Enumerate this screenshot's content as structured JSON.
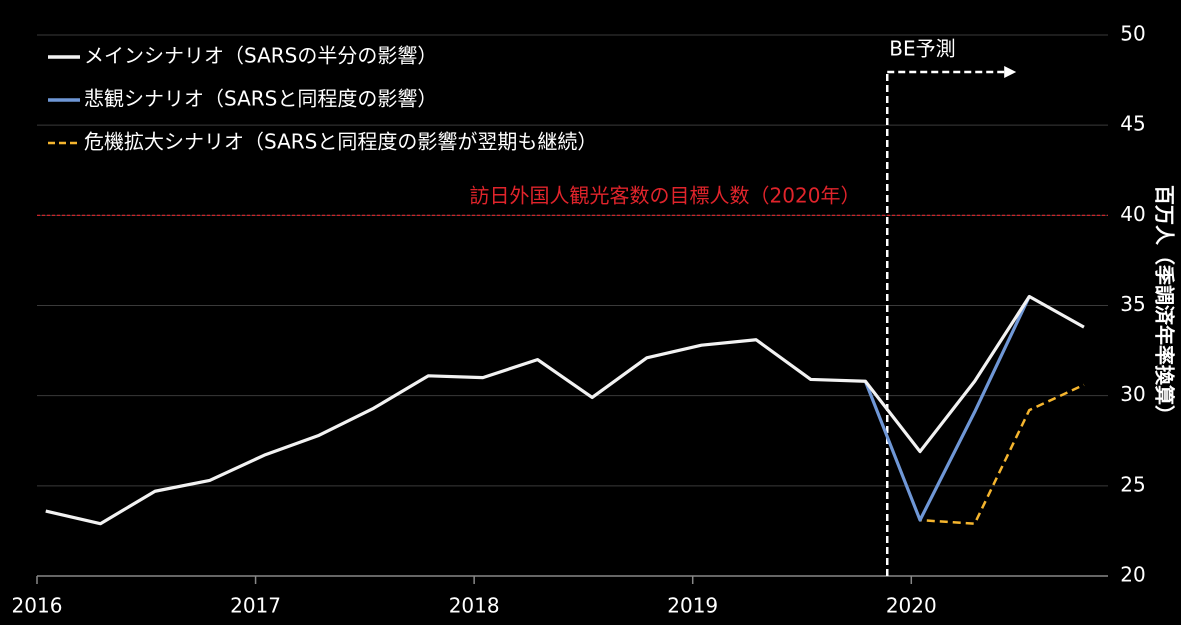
{
  "chart_data": {
    "type": "line",
    "x": [
      2016.04,
      2016.29,
      2016.54,
      2016.79,
      2017.04,
      2017.29,
      2017.54,
      2017.79,
      2018.04,
      2018.29,
      2018.54,
      2018.79,
      2019.04,
      2019.29,
      2019.54,
      2019.79,
      2020.04,
      2020.29,
      2020.54,
      2020.79
    ],
    "series": [
      {
        "name": "メインシナリオ（SARSの半分の影響）",
        "color": "#f2f2f2",
        "dash": false,
        "values": [
          23.6,
          22.9,
          24.7,
          25.3,
          26.7,
          27.8,
          29.3,
          31.1,
          31.0,
          32.0,
          29.9,
          32.1,
          32.8,
          33.1,
          30.9,
          30.8,
          26.9,
          30.8,
          35.5,
          33.8
        ]
      },
      {
        "name": "悲観シナリオ（SARSと同程度の影響）",
        "color": "#6f97d6",
        "dash": false,
        "values": [
          null,
          null,
          null,
          null,
          null,
          null,
          null,
          null,
          null,
          null,
          null,
          null,
          null,
          null,
          null,
          30.8,
          23.1,
          29.1,
          35.5,
          null
        ]
      },
      {
        "name": "危機拡大シナリオ（SARSと同程度の影響が翌期も継続）",
        "color": "#f5b52e",
        "dash": true,
        "values": [
          null,
          null,
          null,
          null,
          null,
          null,
          null,
          null,
          null,
          null,
          null,
          null,
          null,
          null,
          null,
          30.8,
          23.1,
          22.9,
          29.2,
          30.6
        ]
      }
    ],
    "xlim": [
      2016,
      2020.9
    ],
    "xticks": [
      2016,
      2017,
      2018,
      2019,
      2020
    ],
    "ylim": [
      20,
      50
    ],
    "yticks": [
      20,
      25,
      30,
      35,
      40,
      45,
      50
    ],
    "y_label": "百万人（季調済年率換算）",
    "target": {
      "value": 40,
      "label": "訪日外国人観光客数の目標人数（2020年）",
      "color": "#e0242b"
    },
    "forecast": {
      "label": "BE予測",
      "x": 2019.89,
      "end_x": 2020.48
    },
    "grid": true
  }
}
